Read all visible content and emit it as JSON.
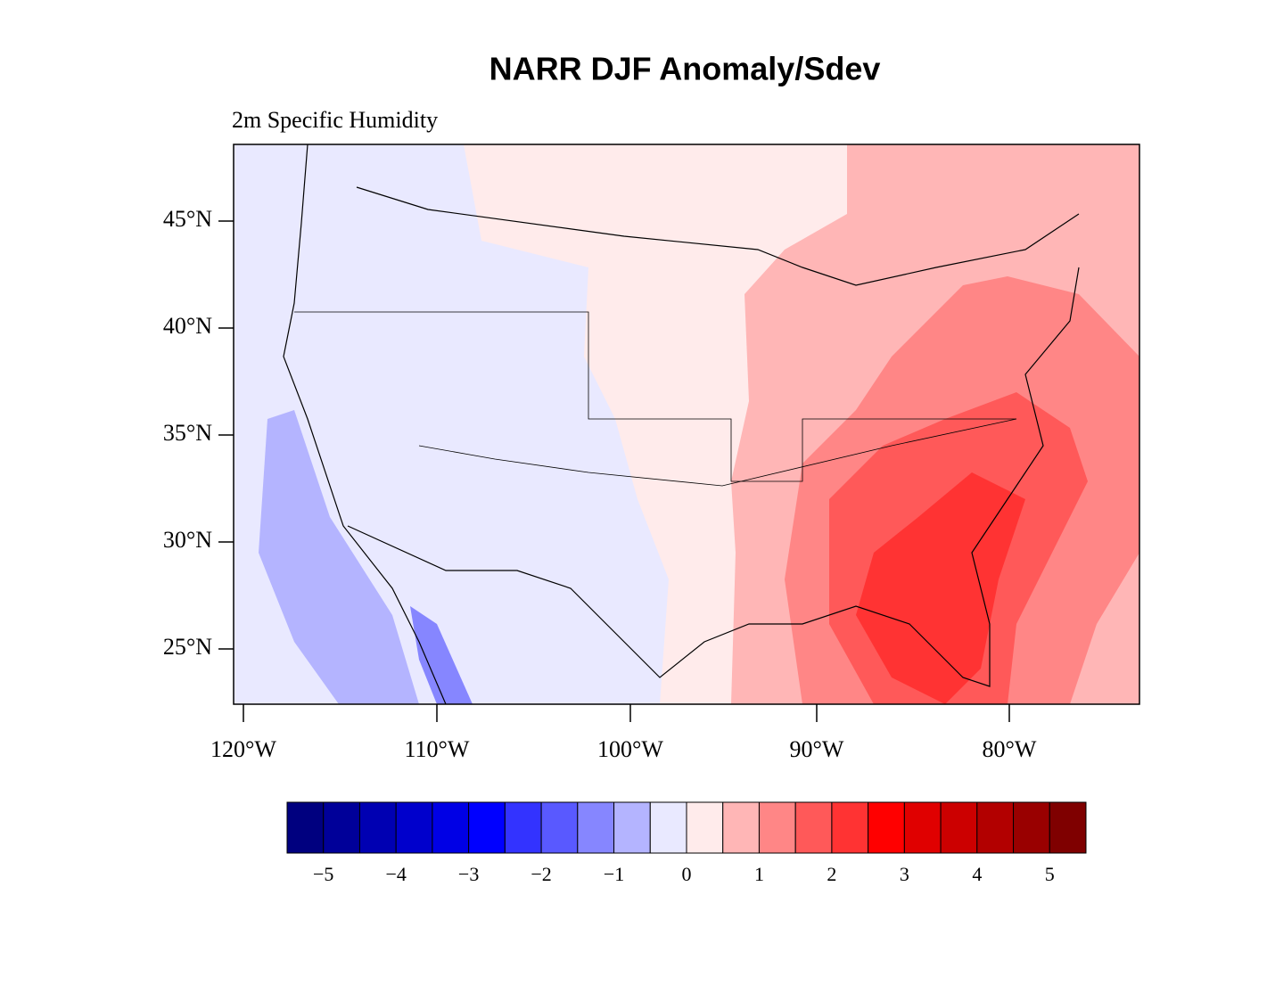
{
  "title": "NARR DJF Anomaly/Sdev",
  "subtitle": "2m Specific Humidity",
  "lat_labels": [
    "45°N",
    "40°N",
    "35°N",
    "30°N",
    "25°N"
  ],
  "lon_labels": [
    "120°W",
    "110°W",
    "100°W",
    "90°W",
    "80°W"
  ],
  "colorbar": {
    "colors": [
      "#00007f",
      "#000099",
      "#0000b2",
      "#0000cc",
      "#0000e5",
      "#0000ff",
      "#3333ff",
      "#5959ff",
      "#8686ff",
      "#b4b4ff",
      "#e9e9ff",
      "#ffebeb",
      "#ffb6b6",
      "#ff8686",
      "#ff5959",
      "#ff3333",
      "#ff0000",
      "#e00000",
      "#cc0000",
      "#b20000",
      "#990000",
      "#7f0000"
    ],
    "labels": [
      "−5",
      "−4",
      "−3",
      "−2",
      "−1",
      "0",
      "1",
      "2",
      "3",
      "4",
      "5"
    ]
  }
}
